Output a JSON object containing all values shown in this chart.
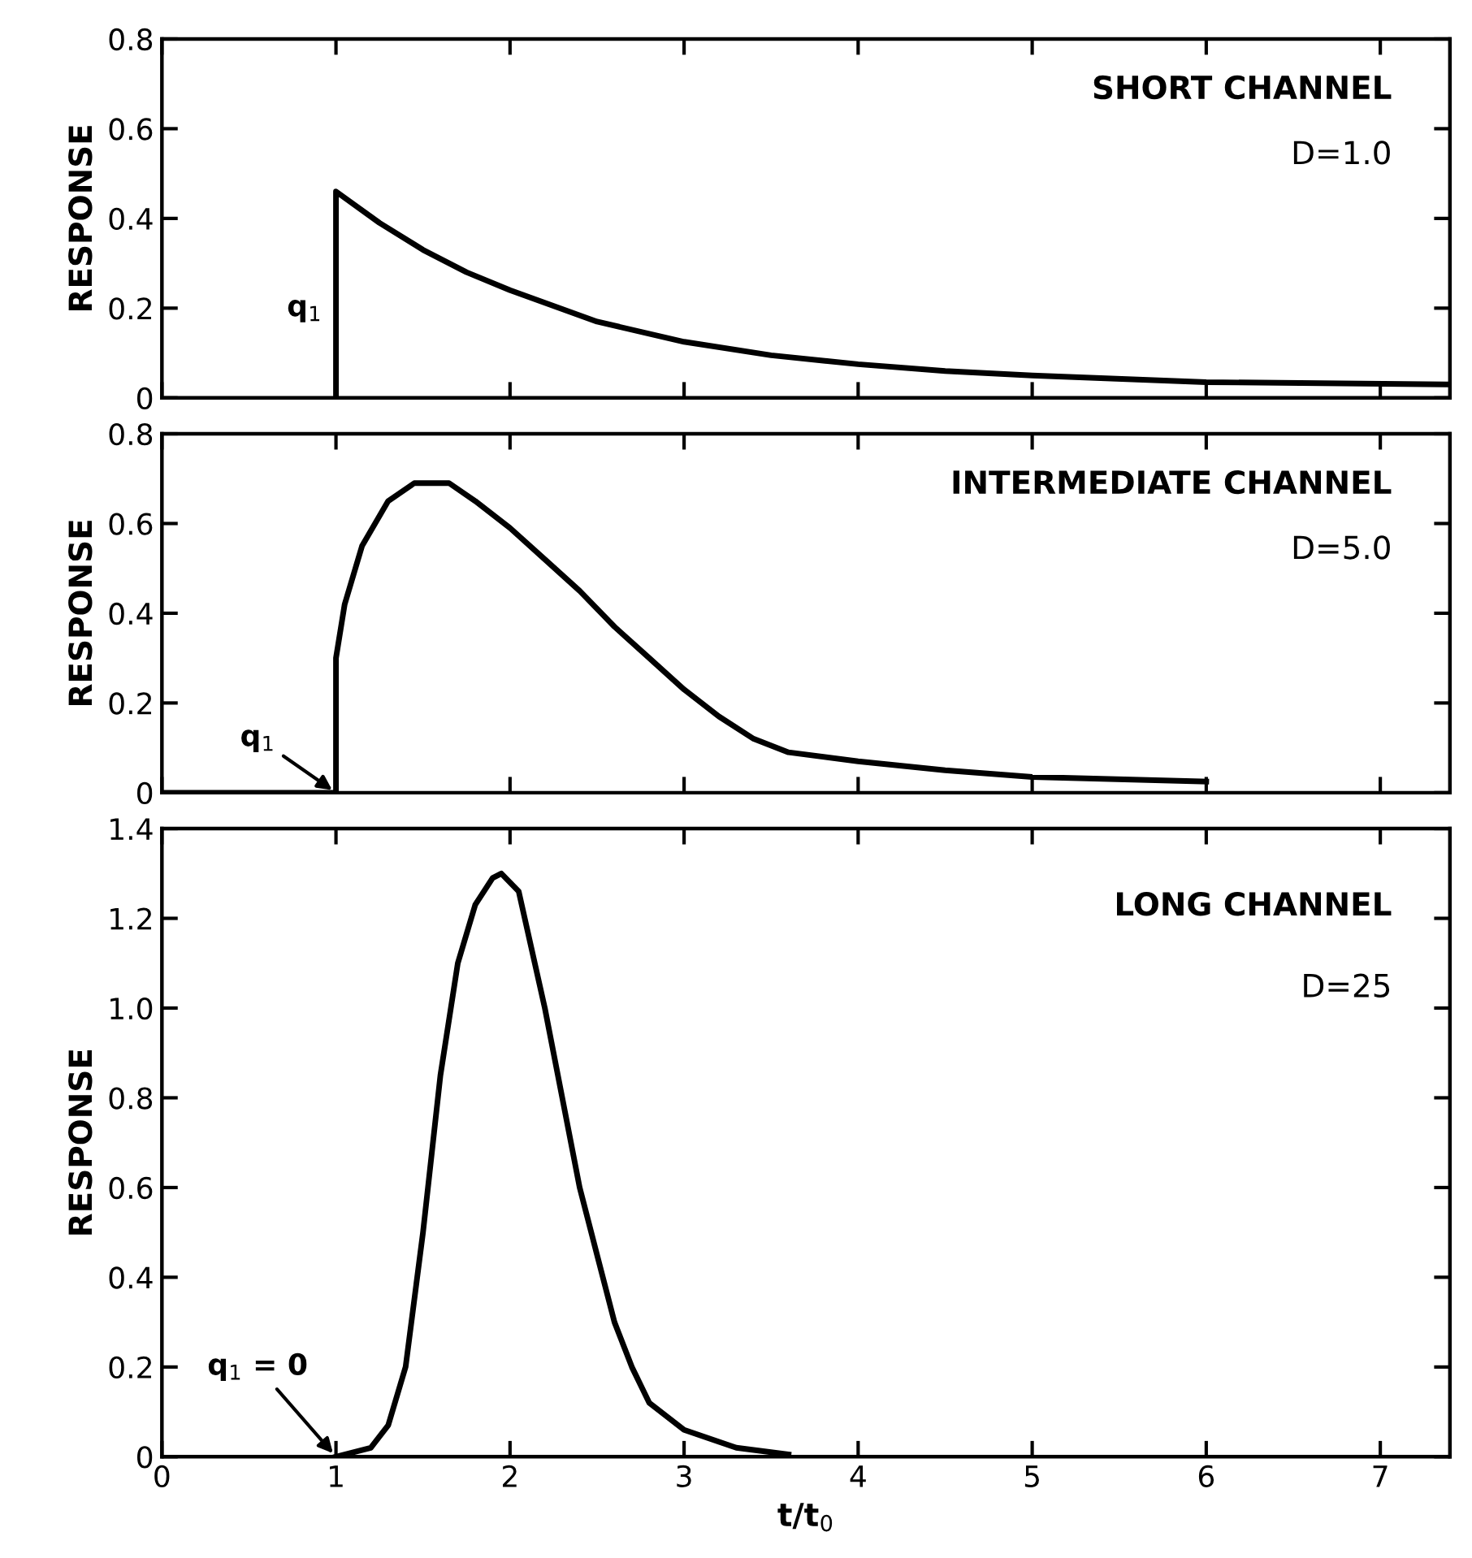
{
  "chart_data": [
    {
      "type": "line",
      "title": "SHORT CHANNEL",
      "subtitle": "D=1.0",
      "ylabel": "RESPONSE",
      "xlim": [
        0,
        7.4
      ],
      "xticks": [
        0,
        1,
        2,
        3,
        4,
        5,
        6,
        7
      ],
      "ylim": [
        0,
        0.8
      ],
      "yticks": [
        0,
        0.2,
        0.4,
        0.6,
        0.8
      ],
      "tick_labels": "y",
      "grid": false,
      "legend": false,
      "series": [
        {
          "color": "#000000",
          "x": [
            1,
            1,
            1.25,
            1.5,
            1.75,
            2,
            2.5,
            3,
            3.5,
            4,
            4.5,
            5,
            6,
            7.4
          ],
          "values": [
            0,
            0.46,
            0.39,
            0.33,
            0.28,
            0.24,
            0.17,
            0.125,
            0.095,
            0.075,
            0.06,
            0.05,
            0.035,
            0.03
          ]
        }
      ],
      "annotations": [
        "q$_{1}$"
      ]
    },
    {
      "type": "line",
      "title": "INTERMEDIATE CHANNEL",
      "subtitle": "D=5.0",
      "ylabel": "RESPONSE",
      "xlim": [
        0,
        7.4
      ],
      "xticks": [
        0,
        1,
        2,
        3,
        4,
        5,
        6,
        7
      ],
      "ylim": [
        0,
        0.8
      ],
      "yticks": [
        0,
        0.2,
        0.4,
        0.6,
        0.8
      ],
      "tick_labels": "y",
      "grid": false,
      "legend": false,
      "series": [
        {
          "color": "#000000",
          "x": [
            0,
            1,
            1,
            1.05,
            1.15,
            1.3,
            1.45,
            1.65,
            1.8,
            2,
            2.2,
            2.4,
            2.6,
            2.8,
            3,
            3.2,
            3.4,
            3.6,
            4,
            4.5,
            5,
            6
          ],
          "values": [
            0,
            0,
            0.3,
            0.42,
            0.55,
            0.65,
            0.69,
            0.69,
            0.65,
            0.59,
            0.52,
            0.45,
            0.37,
            0.3,
            0.23,
            0.17,
            0.12,
            0.09,
            0.07,
            0.05,
            0.035,
            0.025
          ]
        }
      ],
      "annotations": [
        {
          "text": "q$_{1}$",
          "x": 1,
          "y": 0
        }
      ]
    },
    {
      "type": "line",
      "title": "LONG CHANNEL",
      "subtitle": "D=25",
      "ylabel": "RESPONSE",
      "xlabel": "t/t$_{0}$",
      "xlim": [
        0,
        7.4
      ],
      "xticks": [
        0,
        1,
        2,
        3,
        4,
        5,
        6,
        7
      ],
      "ylim": [
        0,
        1.4
      ],
      "yticks": [
        0,
        0.2,
        0.4,
        0.6,
        0.8,
        {
          "value": 1,
          "label": "1.0"
        },
        1.2,
        1.4
      ],
      "grid": false,
      "legend": false,
      "series": [
        {
          "color": "#000000",
          "x": [
            1,
            1.2,
            1.3,
            1.4,
            1.5,
            1.6,
            1.7,
            1.8,
            1.9,
            1.95,
            2.05,
            2.2,
            2.3,
            2.4,
            2.5,
            2.6,
            2.7,
            2.8,
            3,
            3.3,
            3.6
          ],
          "values": [
            0,
            0.02,
            0.07,
            0.2,
            0.5,
            0.85,
            1.1,
            1.23,
            1.29,
            1.3,
            1.26,
            1.0,
            0.8,
            0.6,
            0.45,
            0.3,
            0.2,
            0.12,
            0.06,
            0.02,
            0.005
          ]
        }
      ],
      "annotations": [
        {
          "text": "q$_{1}$ = 0",
          "x": 1,
          "y": 0
        }
      ]
    }
  ]
}
